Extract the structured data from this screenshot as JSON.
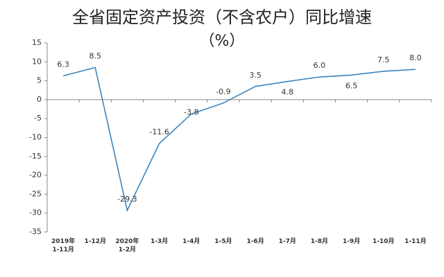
{
  "chart_data": {
    "type": "line",
    "title": "全省固定资产投资（不含农户）同比增速",
    "subtitle": "（%）",
    "categories": [
      "2019年\n1-11月",
      "1-12月",
      "2020年\n1-2月",
      "1-3月",
      "1-4月",
      "1-5月",
      "1-6月",
      "1-7月",
      "1-8月",
      "1-9月",
      "1-10月",
      "1-11月"
    ],
    "values": [
      6.3,
      8.5,
      -29.3,
      -11.6,
      -3.8,
      -0.9,
      3.5,
      4.8,
      6.0,
      6.5,
      7.5,
      8.0
    ],
    "value_labels": [
      "6.3",
      "8.5",
      "-29.3",
      "-11.6",
      "-3.8",
      "-0.9",
      "3.5",
      "4.8",
      "6.0",
      "6.5",
      "7.5",
      "8.0"
    ],
    "color": "#3a86c0",
    "ylim": [
      -35,
      15
    ],
    "yticks": [
      -35,
      -30,
      -25,
      -20,
      -15,
      -10,
      -5,
      0,
      5,
      10,
      15
    ]
  }
}
